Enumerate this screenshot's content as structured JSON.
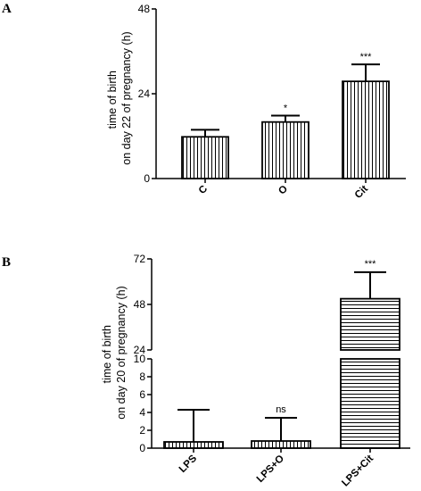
{
  "chart_data": [
    {
      "panel": "A",
      "type": "bar",
      "ylabel": [
        "time of birth",
        "on day 22 of pregnancy (h)"
      ],
      "ylim": [
        0,
        48
      ],
      "yticks": [
        "0",
        "24",
        "48"
      ],
      "categories": [
        "C",
        "O",
        "Cit"
      ],
      "values": [
        11.8,
        16.0,
        27.5
      ],
      "errors": [
        2.0,
        1.8,
        4.8
      ],
      "significance": [
        "",
        "*",
        "***"
      ],
      "fill_pattern": "vertical-lines"
    },
    {
      "panel": "B",
      "type": "bar",
      "ylabel": [
        "time of birth",
        "on day 20 of pregnancy (h)"
      ],
      "broken_axis": true,
      "lower_ylim": [
        0,
        10
      ],
      "lower_yticks": [
        "0",
        "2",
        "4",
        "6",
        "8",
        "10"
      ],
      "upper_ylim": [
        24,
        72
      ],
      "upper_yticks": [
        "24",
        "48",
        "72"
      ],
      "categories": [
        "LPS",
        "LPS+O",
        "LPS+Cit"
      ],
      "values": [
        0.7,
        0.8,
        51.0
      ],
      "errors": [
        3.6,
        2.6,
        14.0
      ],
      "significance": [
        "",
        "ns",
        "***"
      ],
      "fill_pattern": [
        "vertical-lines",
        "vertical-lines",
        "horizontal-lines"
      ]
    }
  ]
}
